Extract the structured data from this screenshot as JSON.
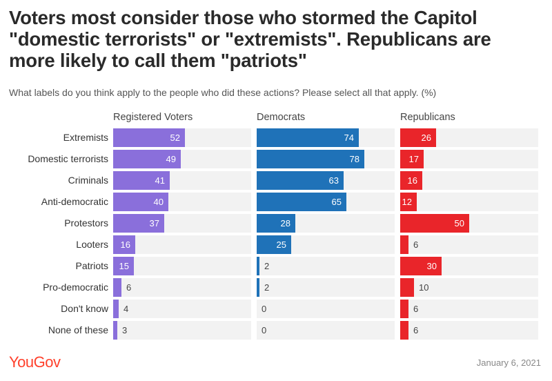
{
  "title": "Voters most consider those who stormed the Capitol \"domestic terrorists\" or \"extremists\". Republicans are more likely to call them \"patriots\"",
  "subtitle": "What labels do you think apply to the people who did these actions? Please select all that apply. (%)",
  "footer": {
    "logo": "YouGov",
    "date": "January 6, 2021"
  },
  "chart_data": {
    "type": "bar",
    "orientation": "horizontal",
    "categories": [
      "Extremists",
      "Domestic terrorists",
      "Criminals",
      "Anti-democratic",
      "Protestors",
      "Looters",
      "Patriots",
      "Pro-democratic",
      "Don't know",
      "None of these"
    ],
    "xlim": [
      0,
      100
    ],
    "grid": false,
    "series": [
      {
        "name": "Registered Voters",
        "color": "#8a6fdb",
        "values": [
          52,
          49,
          41,
          40,
          37,
          16,
          15,
          6,
          4,
          3
        ]
      },
      {
        "name": "Democrats",
        "color": "#1f72b8",
        "values": [
          74,
          78,
          63,
          65,
          28,
          25,
          2,
          2,
          0,
          0
        ]
      },
      {
        "name": "Republicans",
        "color": "#e9252a",
        "values": [
          26,
          17,
          16,
          12,
          50,
          6,
          30,
          10,
          6,
          6
        ]
      }
    ]
  }
}
